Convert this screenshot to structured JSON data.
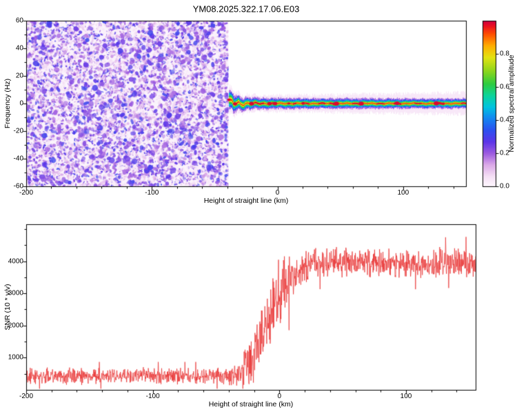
{
  "title": "YM08.2025.322.17.06.E03",
  "chart_data": [
    {
      "type": "heatmap",
      "panel": "spectrogram",
      "title": "YM08.2025.322.17.06.E03",
      "xlabel": "Height of straight line (km)",
      "ylabel": "Frequency (Hz)",
      "xlim": [
        -200,
        150
      ],
      "ylim": [
        -60,
        60
      ],
      "xticks": [
        -200,
        -100,
        0,
        100
      ],
      "yticks": [
        -60,
        -40,
        -20,
        0,
        20,
        40,
        60
      ],
      "grid": false,
      "colorbar": {
        "label": "Normalized spectral amplitude",
        "tick_labels": [
          "0.0",
          "0.2",
          "0.4",
          "0.6",
          "0.8"
        ],
        "tick_values": [
          0.0,
          0.2,
          0.4,
          0.6,
          0.8
        ],
        "range": [
          0,
          1
        ],
        "colormap_stops": [
          [
            0.0,
            "#fef8fe"
          ],
          [
            0.06,
            "#f5e0f5"
          ],
          [
            0.13,
            "#dcaae8"
          ],
          [
            0.2,
            "#9d5ce0"
          ],
          [
            0.27,
            "#5c35e8"
          ],
          [
            0.34,
            "#2d50f0"
          ],
          [
            0.42,
            "#118cf0"
          ],
          [
            0.48,
            "#00c3e0"
          ],
          [
            0.55,
            "#0cd49a"
          ],
          [
            0.62,
            "#2ecc40"
          ],
          [
            0.7,
            "#8fd61c"
          ],
          [
            0.78,
            "#e3e312"
          ],
          [
            0.85,
            "#ffae00"
          ],
          [
            0.92,
            "#ff4f00"
          ],
          [
            0.97,
            "#ea1020"
          ],
          [
            1.0,
            "#cc0040"
          ]
        ]
      },
      "noise_region": {
        "x_start": -200,
        "x_end": -39,
        "freq_min": -60,
        "freq_max": 60,
        "amplitude_min": 0.02,
        "amplitude_max": 0.32,
        "description": "incoherent purple speckle noise filling all frequencies"
      },
      "signal_band": {
        "x_start": -38.5,
        "x_end": 150,
        "center_freq": 0,
        "layers": [
          {
            "value": 0.04,
            "halfwidth_hz": 5.2,
            "halo": true
          },
          {
            "value": 0.18,
            "halfwidth_hz": 3.9
          },
          {
            "value": 0.33,
            "halfwidth_hz": 3.0
          },
          {
            "value": 0.47,
            "halfwidth_hz": 2.25
          },
          {
            "value": 0.62,
            "halfwidth_hz": 1.55
          },
          {
            "value": 0.78,
            "halfwidth_hz": 0.9
          }
        ],
        "core_value": 0.95,
        "dash_value": 0.98,
        "description": "narrow coherent echo centred near 0 Hz with red core dashes"
      }
    },
    {
      "type": "line",
      "panel": "snr",
      "xlabel": "Height of straight line (km)",
      "ylabel": "SNR (10 * v/v)",
      "xlim": [
        -200,
        155
      ],
      "ylim": [
        0,
        5150
      ],
      "xticks": [
        -200,
        -100,
        0,
        100
      ],
      "yticks": [
        1000,
        2000,
        3000,
        4000
      ],
      "line_color": "#e83030",
      "profile": [
        [
          -200,
          430
        ],
        [
          -45,
          430
        ],
        [
          -32,
          520
        ],
        [
          -25,
          700
        ],
        [
          -18,
          1300
        ],
        [
          -10,
          2100
        ],
        [
          -3,
          2800
        ],
        [
          5,
          3300
        ],
        [
          15,
          3700
        ],
        [
          28,
          3950
        ],
        [
          60,
          4000
        ],
        [
          100,
          3920
        ],
        [
          155,
          3980
        ]
      ],
      "noise_amplitude_profile": [
        [
          -200,
          190
        ],
        [
          -42,
          190
        ],
        [
          -30,
          380
        ],
        [
          -22,
          600
        ],
        [
          -12,
          800
        ],
        [
          0,
          800
        ],
        [
          12,
          600
        ],
        [
          25,
          360
        ],
        [
          155,
          340
        ]
      ]
    }
  ]
}
